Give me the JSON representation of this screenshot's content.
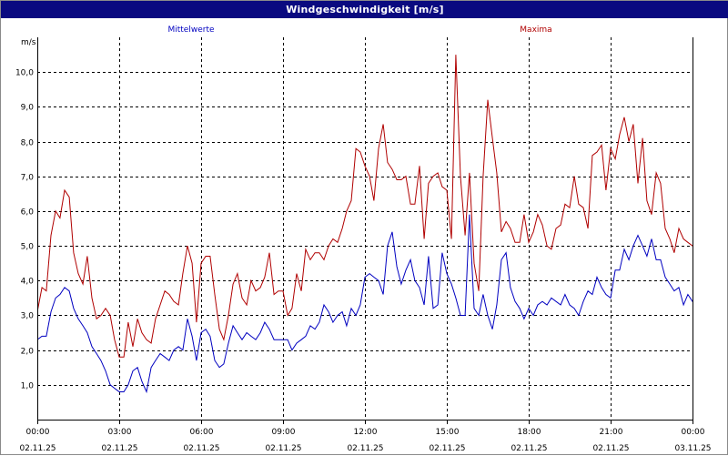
{
  "window": {
    "title": "Windgeschwindigkeit [m/s]"
  },
  "chart_data": {
    "type": "line",
    "title": "Windgeschwindigkeit [m/s]",
    "ylabel": "m/s",
    "xlabel": "",
    "ylim": [
      0,
      11.0
    ],
    "xlim": [
      0,
      24
    ],
    "grid": true,
    "legend": "top",
    "yticks": [
      {
        "value": 1,
        "label": "1,0"
      },
      {
        "value": 2,
        "label": "2,0"
      },
      {
        "value": 3,
        "label": "3,0"
      },
      {
        "value": 4,
        "label": "4,0"
      },
      {
        "value": 5,
        "label": "5,0"
      },
      {
        "value": 6,
        "label": "6,0"
      },
      {
        "value": 7,
        "label": "7,0"
      },
      {
        "value": 8,
        "label": "8,0"
      },
      {
        "value": 9,
        "label": "9,0"
      },
      {
        "value": 10,
        "label": "10,0"
      }
    ],
    "xticks": [
      {
        "value": 0,
        "time": "00:00",
        "date": "02.11.25"
      },
      {
        "value": 3,
        "time": "03:00",
        "date": "02.11.25"
      },
      {
        "value": 6,
        "time": "06:00",
        "date": "02.11.25"
      },
      {
        "value": 9,
        "time": "09:00",
        "date": "02.11.25"
      },
      {
        "value": 12,
        "time": "12:00",
        "date": "02.11.25"
      },
      {
        "value": 15,
        "time": "15:00",
        "date": "02.11.25"
      },
      {
        "value": 18,
        "time": "18:00",
        "date": "02.11.25"
      },
      {
        "value": 21,
        "time": "21:00",
        "date": "02.11.25"
      },
      {
        "value": 24,
        "time": "00:00",
        "date": "03.11.25"
      }
    ],
    "series": [
      {
        "name": "Mittelwerte",
        "color": "#0000c0",
        "points": [
          [
            0,
            2.3
          ],
          [
            0.17,
            2.4
          ],
          [
            0.33,
            2.4
          ],
          [
            0.5,
            3.1
          ],
          [
            0.67,
            3.5
          ],
          [
            0.83,
            3.6
          ],
          [
            1.0,
            3.8
          ],
          [
            1.17,
            3.7
          ],
          [
            1.33,
            3.2
          ],
          [
            1.5,
            2.9
          ],
          [
            1.67,
            2.7
          ],
          [
            1.83,
            2.5
          ],
          [
            2.0,
            2.1
          ],
          [
            2.17,
            1.9
          ],
          [
            2.33,
            1.7
          ],
          [
            2.5,
            1.4
          ],
          [
            2.67,
            1.0
          ],
          [
            2.83,
            0.9
          ],
          [
            3.0,
            0.8
          ],
          [
            3.17,
            0.8
          ],
          [
            3.33,
            1.0
          ],
          [
            3.5,
            1.4
          ],
          [
            3.67,
            1.5
          ],
          [
            3.83,
            1.1
          ],
          [
            4.0,
            0.8
          ],
          [
            4.17,
            1.5
          ],
          [
            4.33,
            1.7
          ],
          [
            4.5,
            1.9
          ],
          [
            4.67,
            1.8
          ],
          [
            4.83,
            1.7
          ],
          [
            5.0,
            2.0
          ],
          [
            5.17,
            2.1
          ],
          [
            5.33,
            2.0
          ],
          [
            5.5,
            2.9
          ],
          [
            5.67,
            2.4
          ],
          [
            5.83,
            1.7
          ],
          [
            6.0,
            2.5
          ],
          [
            6.17,
            2.6
          ],
          [
            6.33,
            2.4
          ],
          [
            6.5,
            1.7
          ],
          [
            6.67,
            1.5
          ],
          [
            6.83,
            1.6
          ],
          [
            7.0,
            2.2
          ],
          [
            7.17,
            2.7
          ],
          [
            7.33,
            2.5
          ],
          [
            7.5,
            2.3
          ],
          [
            7.67,
            2.5
          ],
          [
            7.83,
            2.4
          ],
          [
            8.0,
            2.3
          ],
          [
            8.17,
            2.5
          ],
          [
            8.33,
            2.8
          ],
          [
            8.5,
            2.6
          ],
          [
            8.67,
            2.3
          ],
          [
            8.83,
            2.3
          ],
          [
            9.0,
            2.3
          ],
          [
            9.17,
            2.3
          ],
          [
            9.33,
            2.0
          ],
          [
            9.5,
            2.2
          ],
          [
            9.67,
            2.3
          ],
          [
            9.83,
            2.4
          ],
          [
            10.0,
            2.7
          ],
          [
            10.17,
            2.6
          ],
          [
            10.33,
            2.8
          ],
          [
            10.5,
            3.3
          ],
          [
            10.67,
            3.1
          ],
          [
            10.83,
            2.8
          ],
          [
            11.0,
            3.0
          ],
          [
            11.17,
            3.1
          ],
          [
            11.33,
            2.7
          ],
          [
            11.5,
            3.2
          ],
          [
            11.67,
            3.0
          ],
          [
            11.83,
            3.3
          ],
          [
            12.0,
            4.1
          ],
          [
            12.17,
            4.2
          ],
          [
            12.33,
            4.1
          ],
          [
            12.5,
            4.0
          ],
          [
            12.67,
            3.6
          ],
          [
            12.83,
            5.0
          ],
          [
            13.0,
            5.4
          ],
          [
            13.17,
            4.4
          ],
          [
            13.33,
            3.9
          ],
          [
            13.5,
            4.3
          ],
          [
            13.67,
            4.6
          ],
          [
            13.83,
            4.0
          ],
          [
            14.0,
            3.8
          ],
          [
            14.17,
            3.3
          ],
          [
            14.33,
            4.7
          ],
          [
            14.5,
            3.2
          ],
          [
            14.67,
            3.3
          ],
          [
            14.83,
            4.8
          ],
          [
            15.0,
            4.2
          ],
          [
            15.17,
            3.9
          ],
          [
            15.33,
            3.5
          ],
          [
            15.5,
            3.0
          ],
          [
            15.67,
            3.0
          ],
          [
            15.83,
            5.9
          ],
          [
            16.0,
            3.2
          ],
          [
            16.17,
            3.0
          ],
          [
            16.33,
            3.6
          ],
          [
            16.5,
            3.0
          ],
          [
            16.67,
            2.6
          ],
          [
            16.83,
            3.3
          ],
          [
            17.0,
            4.6
          ],
          [
            17.17,
            4.8
          ],
          [
            17.33,
            3.8
          ],
          [
            17.5,
            3.4
          ],
          [
            17.67,
            3.2
          ],
          [
            17.83,
            2.9
          ],
          [
            18.0,
            3.2
          ],
          [
            18.17,
            3.0
          ],
          [
            18.33,
            3.3
          ],
          [
            18.5,
            3.4
          ],
          [
            18.67,
            3.3
          ],
          [
            18.83,
            3.5
          ],
          [
            19.0,
            3.4
          ],
          [
            19.17,
            3.3
          ],
          [
            19.33,
            3.6
          ],
          [
            19.5,
            3.3
          ],
          [
            19.67,
            3.2
          ],
          [
            19.83,
            3.0
          ],
          [
            20.0,
            3.4
          ],
          [
            20.17,
            3.7
          ],
          [
            20.33,
            3.6
          ],
          [
            20.5,
            4.1
          ],
          [
            20.67,
            3.8
          ],
          [
            20.83,
            3.6
          ],
          [
            21.0,
            3.5
          ],
          [
            21.17,
            4.3
          ],
          [
            21.33,
            4.3
          ],
          [
            21.5,
            4.9
          ],
          [
            21.67,
            4.6
          ],
          [
            21.83,
            5.0
          ],
          [
            22.0,
            5.3
          ],
          [
            22.17,
            5.0
          ],
          [
            22.33,
            4.7
          ],
          [
            22.5,
            5.2
          ],
          [
            22.67,
            4.6
          ],
          [
            22.83,
            4.6
          ],
          [
            23.0,
            4.1
          ],
          [
            23.17,
            3.9
          ],
          [
            23.33,
            3.7
          ],
          [
            23.5,
            3.8
          ],
          [
            23.67,
            3.3
          ],
          [
            23.83,
            3.6
          ],
          [
            24.0,
            3.4
          ],
          [
            24.17,
            3.4
          ],
          [
            24.33,
            3.5
          ],
          [
            24.5,
            3.2
          ]
        ]
      },
      {
        "name": "Maxima",
        "color": "#b00000",
        "points": [
          [
            0,
            3.1
          ],
          [
            0.17,
            3.8
          ],
          [
            0.33,
            3.7
          ],
          [
            0.5,
            5.3
          ],
          [
            0.67,
            6.0
          ],
          [
            0.83,
            5.8
          ],
          [
            1.0,
            6.6
          ],
          [
            1.17,
            6.4
          ],
          [
            1.33,
            4.8
          ],
          [
            1.5,
            4.2
          ],
          [
            1.67,
            3.9
          ],
          [
            1.83,
            4.7
          ],
          [
            2.0,
            3.5
          ],
          [
            2.17,
            2.9
          ],
          [
            2.33,
            3.0
          ],
          [
            2.5,
            3.2
          ],
          [
            2.67,
            3.0
          ],
          [
            2.83,
            2.3
          ],
          [
            3.0,
            1.8
          ],
          [
            3.17,
            1.8
          ],
          [
            3.33,
            2.8
          ],
          [
            3.5,
            2.1
          ],
          [
            3.67,
            2.9
          ],
          [
            3.83,
            2.5
          ],
          [
            4.0,
            2.3
          ],
          [
            4.17,
            2.2
          ],
          [
            4.33,
            2.9
          ],
          [
            4.5,
            3.3
          ],
          [
            4.67,
            3.7
          ],
          [
            4.83,
            3.6
          ],
          [
            5.0,
            3.4
          ],
          [
            5.17,
            3.3
          ],
          [
            5.33,
            4.2
          ],
          [
            5.5,
            5.0
          ],
          [
            5.67,
            4.5
          ],
          [
            5.83,
            2.8
          ],
          [
            6.0,
            4.5
          ],
          [
            6.17,
            4.7
          ],
          [
            6.33,
            4.7
          ],
          [
            6.5,
            3.6
          ],
          [
            6.67,
            2.6
          ],
          [
            6.83,
            2.3
          ],
          [
            7.0,
            3.0
          ],
          [
            7.17,
            3.9
          ],
          [
            7.33,
            4.2
          ],
          [
            7.5,
            3.5
          ],
          [
            7.67,
            3.3
          ],
          [
            7.83,
            4.0
          ],
          [
            8.0,
            3.7
          ],
          [
            8.17,
            3.8
          ],
          [
            8.33,
            4.1
          ],
          [
            8.5,
            4.8
          ],
          [
            8.67,
            3.6
          ],
          [
            8.83,
            3.7
          ],
          [
            9.0,
            3.7
          ],
          [
            9.17,
            3.0
          ],
          [
            9.33,
            3.2
          ],
          [
            9.5,
            4.2
          ],
          [
            9.67,
            3.7
          ],
          [
            9.83,
            4.9
          ],
          [
            10.0,
            4.6
          ],
          [
            10.17,
            4.8
          ],
          [
            10.33,
            4.8
          ],
          [
            10.5,
            4.6
          ],
          [
            10.67,
            5.0
          ],
          [
            10.83,
            5.2
          ],
          [
            11.0,
            5.1
          ],
          [
            11.17,
            5.5
          ],
          [
            11.33,
            6.0
          ],
          [
            11.5,
            6.3
          ],
          [
            11.67,
            7.8
          ],
          [
            11.83,
            7.7
          ],
          [
            12.0,
            7.3
          ],
          [
            12.17,
            7.0
          ],
          [
            12.33,
            6.3
          ],
          [
            12.5,
            7.8
          ],
          [
            12.67,
            8.5
          ],
          [
            12.83,
            7.4
          ],
          [
            13.0,
            7.2
          ],
          [
            13.17,
            6.9
          ],
          [
            13.33,
            6.9
          ],
          [
            13.5,
            7.0
          ],
          [
            13.67,
            6.2
          ],
          [
            13.83,
            6.2
          ],
          [
            14.0,
            7.3
          ],
          [
            14.17,
            5.2
          ],
          [
            14.33,
            6.8
          ],
          [
            14.5,
            7.0
          ],
          [
            14.67,
            7.1
          ],
          [
            14.83,
            6.7
          ],
          [
            15.0,
            6.6
          ],
          [
            15.17,
            5.2
          ],
          [
            15.33,
            10.5
          ],
          [
            15.5,
            7.0
          ],
          [
            15.67,
            5.3
          ],
          [
            15.83,
            7.1
          ],
          [
            16.0,
            4.5
          ],
          [
            16.17,
            3.7
          ],
          [
            16.33,
            7.0
          ],
          [
            16.5,
            9.2
          ],
          [
            16.67,
            8.1
          ],
          [
            16.83,
            7.1
          ],
          [
            17.0,
            5.4
          ],
          [
            17.17,
            5.7
          ],
          [
            17.33,
            5.5
          ],
          [
            17.5,
            5.1
          ],
          [
            17.67,
            5.1
          ],
          [
            17.83,
            5.9
          ],
          [
            18.0,
            5.1
          ],
          [
            18.17,
            5.4
          ],
          [
            18.33,
            5.9
          ],
          [
            18.5,
            5.6
          ],
          [
            18.67,
            5.0
          ],
          [
            18.83,
            4.9
          ],
          [
            19.0,
            5.5
          ],
          [
            19.17,
            5.6
          ],
          [
            19.33,
            6.2
          ],
          [
            19.5,
            6.1
          ],
          [
            19.67,
            7.0
          ],
          [
            19.83,
            6.2
          ],
          [
            20.0,
            6.1
          ],
          [
            20.17,
            5.5
          ],
          [
            20.33,
            7.6
          ],
          [
            20.5,
            7.7
          ],
          [
            20.67,
            7.9
          ],
          [
            20.83,
            6.6
          ],
          [
            21.0,
            7.8
          ],
          [
            21.17,
            7.5
          ],
          [
            21.33,
            8.2
          ],
          [
            21.5,
            8.7
          ],
          [
            21.67,
            8.0
          ],
          [
            21.83,
            8.5
          ],
          [
            22.0,
            6.8
          ],
          [
            22.17,
            8.1
          ],
          [
            22.33,
            6.3
          ],
          [
            22.5,
            5.9
          ],
          [
            22.67,
            7.1
          ],
          [
            22.83,
            6.8
          ],
          [
            23.0,
            5.5
          ],
          [
            23.17,
            5.2
          ],
          [
            23.33,
            4.8
          ],
          [
            23.5,
            5.5
          ],
          [
            23.67,
            5.2
          ],
          [
            23.83,
            5.1
          ],
          [
            24.0,
            5.0
          ],
          [
            24.17,
            5.2
          ],
          [
            24.33,
            5.1
          ],
          [
            24.5,
            4.9
          ]
        ]
      }
    ]
  }
}
